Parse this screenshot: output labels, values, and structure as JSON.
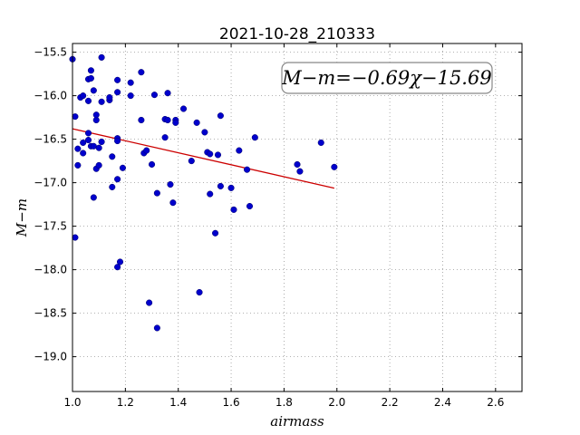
{
  "chart_data": {
    "type": "scatter",
    "title": "2021-10-28_210333",
    "xlabel": "airmass",
    "ylabel": "M−m",
    "xlim": [
      1.0,
      2.7
    ],
    "ylim": [
      -19.4,
      -15.4
    ],
    "y_inverted": true,
    "grid": true,
    "x_ticks": [
      1.0,
      1.2,
      1.4,
      1.6,
      1.8,
      2.0,
      2.2,
      2.4,
      2.6
    ],
    "x_tick_labels": [
      "1.0",
      "1.2",
      "1.4",
      "1.6",
      "1.8",
      "2.0",
      "2.2",
      "2.4",
      "2.6"
    ],
    "y_ticks": [
      -15.5,
      -16.0,
      -16.5,
      -17.0,
      -17.5,
      -18.0,
      -18.5,
      -19.0
    ],
    "y_tick_labels": [
      "−15.5",
      "−16.0",
      "−16.5",
      "−17.0",
      "−17.5",
      "−18.0",
      "−18.5",
      "−19.0"
    ],
    "annotation": "M−m=−0.69χ−15.69",
    "fit": {
      "slope": -0.69,
      "intercept": -15.69,
      "x_range": [
        1.0,
        1.99
      ]
    },
    "colors": {
      "points": "#0000cc",
      "fit_line": "#cc0000",
      "grid": "#999999"
    },
    "points": [
      {
        "x": 1.0,
        "y": -15.58
      },
      {
        "x": 1.01,
        "y": -16.24
      },
      {
        "x": 1.01,
        "y": -17.63
      },
      {
        "x": 1.02,
        "y": -16.8
      },
      {
        "x": 1.02,
        "y": -16.61
      },
      {
        "x": 1.03,
        "y": -16.02
      },
      {
        "x": 1.04,
        "y": -16.0
      },
      {
        "x": 1.04,
        "y": -16.66
      },
      {
        "x": 1.04,
        "y": -16.54
      },
      {
        "x": 1.06,
        "y": -15.81
      },
      {
        "x": 1.06,
        "y": -16.06
      },
      {
        "x": 1.06,
        "y": -16.43
      },
      {
        "x": 1.06,
        "y": -16.51
      },
      {
        "x": 1.07,
        "y": -16.58
      },
      {
        "x": 1.07,
        "y": -15.71
      },
      {
        "x": 1.07,
        "y": -15.8
      },
      {
        "x": 1.08,
        "y": -16.58
      },
      {
        "x": 1.08,
        "y": -17.17
      },
      {
        "x": 1.08,
        "y": -15.94
      },
      {
        "x": 1.09,
        "y": -16.28
      },
      {
        "x": 1.09,
        "y": -16.22
      },
      {
        "x": 1.09,
        "y": -16.84
      },
      {
        "x": 1.1,
        "y": -16.6
      },
      {
        "x": 1.1,
        "y": -16.8
      },
      {
        "x": 1.11,
        "y": -15.56
      },
      {
        "x": 1.11,
        "y": -16.07
      },
      {
        "x": 1.11,
        "y": -16.53
      },
      {
        "x": 1.14,
        "y": -16.05
      },
      {
        "x": 1.14,
        "y": -16.02
      },
      {
        "x": 1.15,
        "y": -17.05
      },
      {
        "x": 1.15,
        "y": -16.7
      },
      {
        "x": 1.17,
        "y": -15.82
      },
      {
        "x": 1.17,
        "y": -15.96
      },
      {
        "x": 1.17,
        "y": -16.49
      },
      {
        "x": 1.17,
        "y": -16.52
      },
      {
        "x": 1.17,
        "y": -16.96
      },
      {
        "x": 1.17,
        "y": -17.97
      },
      {
        "x": 1.18,
        "y": -17.91
      },
      {
        "x": 1.19,
        "y": -16.83
      },
      {
        "x": 1.22,
        "y": -15.85
      },
      {
        "x": 1.22,
        "y": -16.0
      },
      {
        "x": 1.26,
        "y": -15.73
      },
      {
        "x": 1.26,
        "y": -16.28
      },
      {
        "x": 1.27,
        "y": -16.66
      },
      {
        "x": 1.28,
        "y": -16.63
      },
      {
        "x": 1.29,
        "y": -18.38
      },
      {
        "x": 1.3,
        "y": -16.79
      },
      {
        "x": 1.31,
        "y": -15.99
      },
      {
        "x": 1.32,
        "y": -17.12
      },
      {
        "x": 1.32,
        "y": -18.67
      },
      {
        "x": 1.35,
        "y": -16.48
      },
      {
        "x": 1.35,
        "y": -16.27
      },
      {
        "x": 1.36,
        "y": -15.97
      },
      {
        "x": 1.36,
        "y": -16.28
      },
      {
        "x": 1.37,
        "y": -17.02
      },
      {
        "x": 1.38,
        "y": -17.23
      },
      {
        "x": 1.39,
        "y": -16.28
      },
      {
        "x": 1.39,
        "y": -16.31
      },
      {
        "x": 1.42,
        "y": -16.15
      },
      {
        "x": 1.45,
        "y": -16.75
      },
      {
        "x": 1.47,
        "y": -16.31
      },
      {
        "x": 1.48,
        "y": -18.26
      },
      {
        "x": 1.5,
        "y": -16.42
      },
      {
        "x": 1.51,
        "y": -16.65
      },
      {
        "x": 1.52,
        "y": -16.67
      },
      {
        "x": 1.52,
        "y": -17.13
      },
      {
        "x": 1.54,
        "y": -17.58
      },
      {
        "x": 1.55,
        "y": -16.68
      },
      {
        "x": 1.56,
        "y": -16.23
      },
      {
        "x": 1.56,
        "y": -17.04
      },
      {
        "x": 1.6,
        "y": -17.06
      },
      {
        "x": 1.61,
        "y": -17.31
      },
      {
        "x": 1.63,
        "y": -16.63
      },
      {
        "x": 1.66,
        "y": -16.85
      },
      {
        "x": 1.67,
        "y": -17.27
      },
      {
        "x": 1.69,
        "y": -16.48
      },
      {
        "x": 1.85,
        "y": -16.79
      },
      {
        "x": 1.86,
        "y": -16.87
      },
      {
        "x": 1.94,
        "y": -16.54
      },
      {
        "x": 1.99,
        "y": -16.82
      }
    ]
  }
}
